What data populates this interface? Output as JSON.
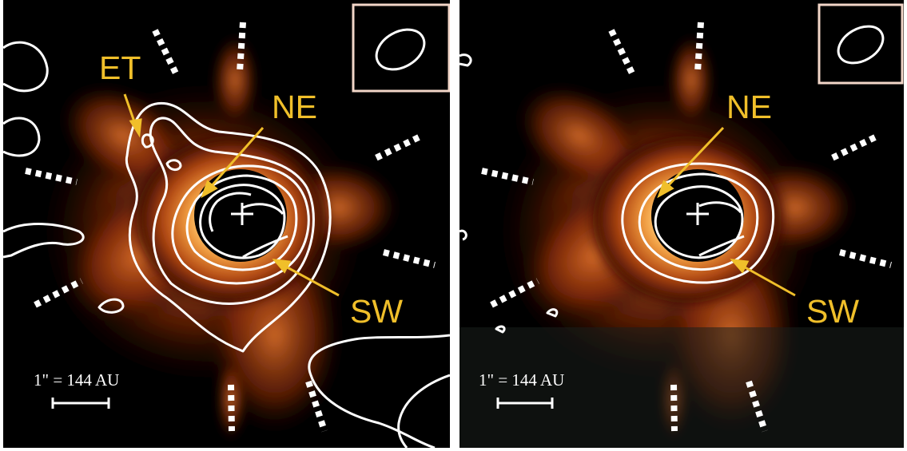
{
  "left_panel": {
    "labels": {
      "et": "ET",
      "ne": "NE",
      "sw": "SW"
    },
    "scale_bar_label": "1\" = 144 AU"
  },
  "right_panel": {
    "labels": {
      "ne": "NE",
      "sw": "SW"
    },
    "scale_bar_label": "1\" = 144 AU"
  },
  "colors": {
    "label": "#f0bf2a",
    "contour": "#ffffff",
    "disk_core": "#fff6d8",
    "disk_mid": "#ee8a2c",
    "disk_outer": "#8a2408",
    "background": "#000000"
  }
}
